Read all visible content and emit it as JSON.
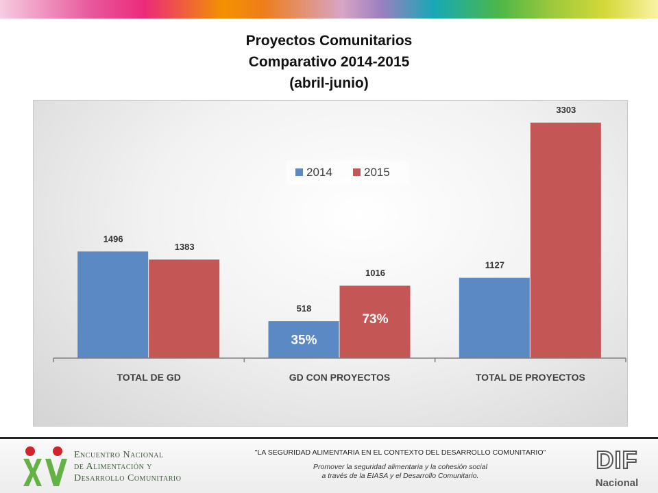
{
  "slide": {
    "title_lines": [
      "Proyectos Comunitarios",
      "Comparativo 2014-2015",
      "(abril-junio)"
    ]
  },
  "chart_data": {
    "type": "bar",
    "categories": [
      "TOTAL DE GD",
      "GD CON PROYECTOS",
      "TOTAL DE PROYECTOS"
    ],
    "series": [
      {
        "name": "2014",
        "values": [
          1496,
          518,
          1127
        ],
        "color": "#5b89c4"
      },
      {
        "name": "2015",
        "values": [
          1383,
          1016,
          3303
        ],
        "color": "#c45756"
      }
    ],
    "ylim": [
      0,
      3420
    ],
    "legend_position": "top-center",
    "annotations": [
      {
        "category": "GD CON PROYECTOS",
        "series": "2014",
        "text": "35%"
      },
      {
        "category": "GD CON PROYECTOS",
        "series": "2015",
        "text": "73%"
      }
    ],
    "grid": false
  },
  "footer": {
    "event_lines": [
      "Encuentro Nacional",
      "de Alimentación y",
      "Desarrollo Comunitario"
    ],
    "logo_text": "XV",
    "slogan": "\"LA SEGURIDAD ALIMENTARIA EN EL CONTEXTO DEL DESARROLLO COMUNITARIO\"",
    "mission_lines": [
      "Promover la seguridad alimentaria y la cohesión social",
      "a través de la EIASA y el Desarrollo Comunitario."
    ],
    "dif_lines": [
      "DIF",
      "Nacional"
    ]
  },
  "colors": {
    "bar_2014": "#5b89c4",
    "bar_2015": "#c45756",
    "footer_green": "#3d5a3a",
    "logo_red": "#d2232a",
    "logo_green": "#64b246"
  },
  "icons": [
    "xv-logo-icon",
    "dif-logo-icon"
  ]
}
